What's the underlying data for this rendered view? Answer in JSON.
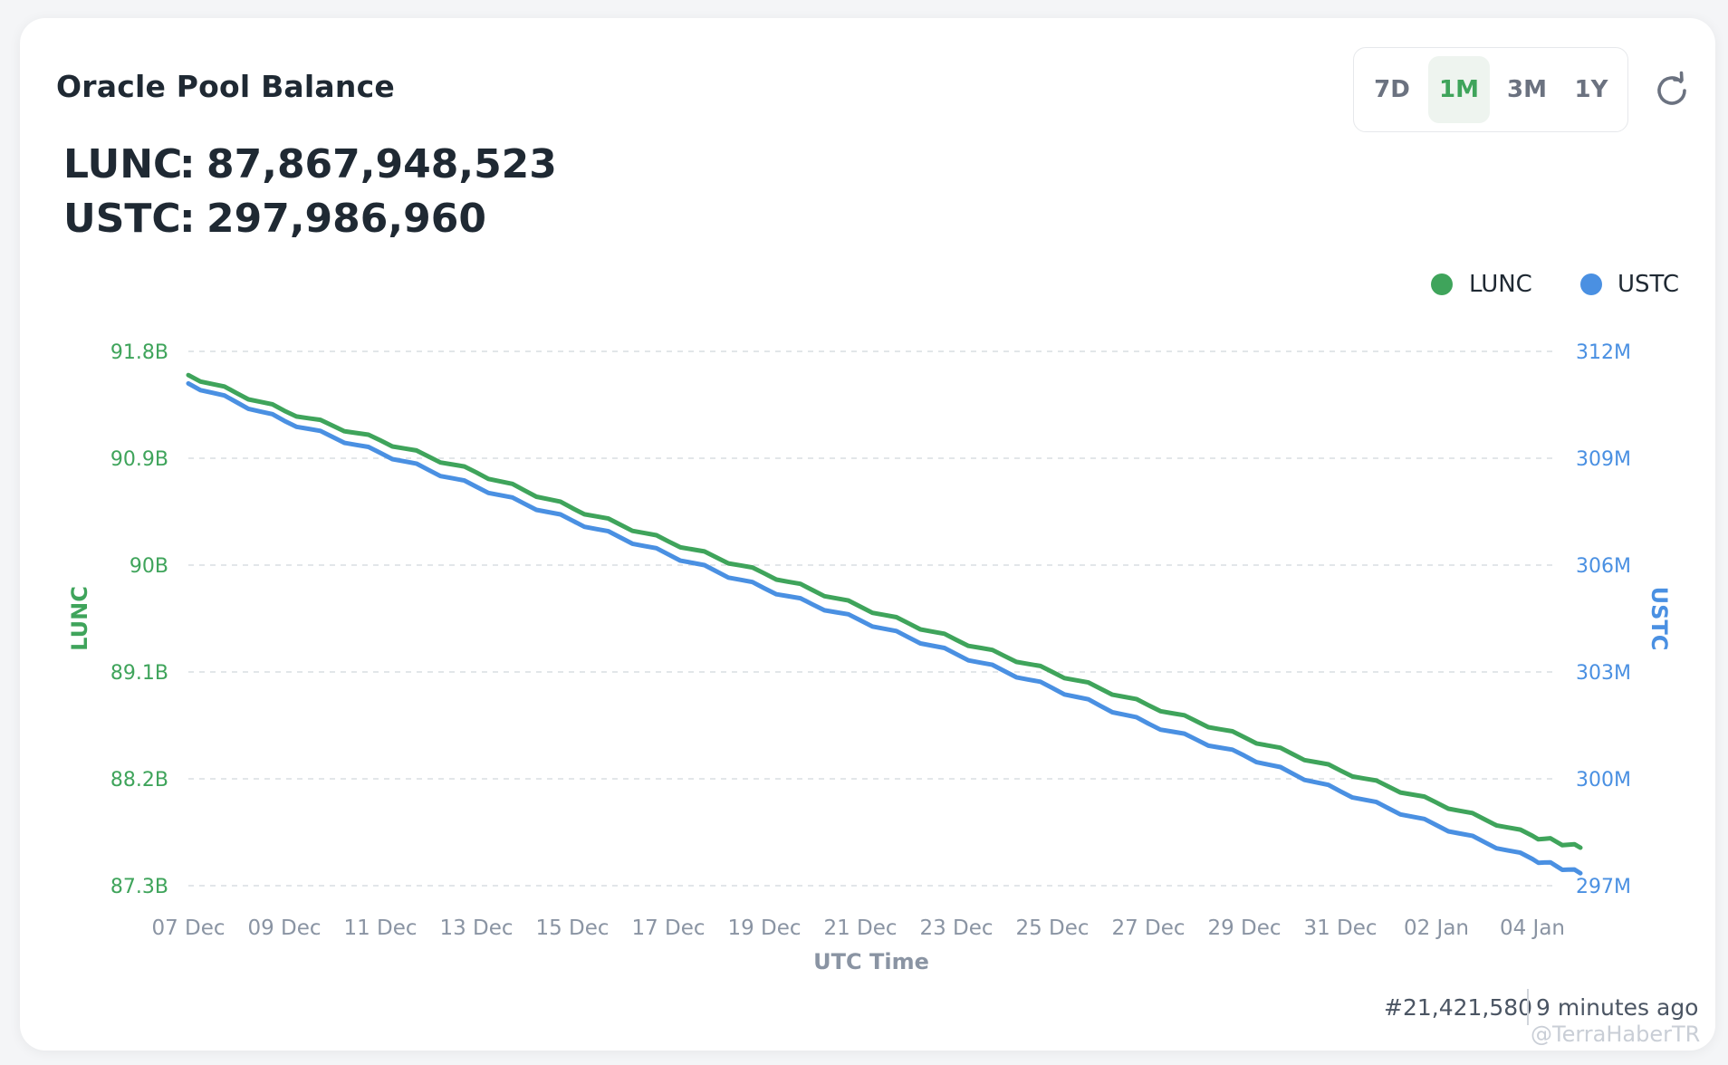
{
  "title": "Oracle Pool Balance",
  "balances": [
    {
      "label": "LUNC",
      "value": "87,867,948,523"
    },
    {
      "label": "USTC",
      "value": "297,986,960"
    }
  ],
  "separator": ":",
  "time_ranges": [
    {
      "label": "7D",
      "active": false
    },
    {
      "label": "1M",
      "active": true
    },
    {
      "label": "3M",
      "active": false
    },
    {
      "label": "1Y",
      "active": false
    }
  ],
  "refresh_icon": "refresh-icon",
  "colors": {
    "lunc": "#3fa45b",
    "ustc": "#4a90e2",
    "grid": "#d9dde2",
    "axis_text": "#8a94a3"
  },
  "footer": {
    "block": "#21,421,580",
    "updated": "9 minutes ago"
  },
  "watermark": "@TerraHaberTR",
  "chart_data": {
    "type": "line",
    "xlabel": "UTC Time",
    "x_ticks": [
      "07 Dec",
      "09 Dec",
      "11 Dec",
      "13 Dec",
      "15 Dec",
      "17 Dec",
      "19 Dec",
      "21 Dec",
      "23 Dec",
      "25 Dec",
      "27 Dec",
      "29 Dec",
      "31 Dec",
      "02 Jan",
      "04 Jan"
    ],
    "legend": {
      "position": "top-right",
      "items": [
        "LUNC",
        "USTC"
      ]
    },
    "y_left": {
      "label": "LUNC",
      "ticks": [
        "91.8B",
        "90.9B",
        "90B",
        "89.1B",
        "88.2B",
        "87.3B"
      ],
      "range": [
        87.3,
        91.8
      ],
      "unit": "B"
    },
    "y_right": {
      "label": "USTC",
      "ticks": [
        "312M",
        "309M",
        "306M",
        "303M",
        "300M",
        "297M"
      ],
      "range": [
        297,
        312
      ],
      "unit": "M"
    },
    "grid": true,
    "series": [
      {
        "name": "LUNC",
        "axis": "left",
        "x": [
          "07 Dec",
          "09 Dec",
          "11 Dec",
          "13 Dec",
          "15 Dec",
          "17 Dec",
          "19 Dec",
          "21 Dec",
          "23 Dec",
          "25 Dec",
          "27 Dec",
          "29 Dec",
          "31 Dec",
          "02 Jan",
          "04 Jan",
          "05 Jan"
        ],
        "values": [
          91.6,
          91.3,
          91.05,
          90.78,
          90.48,
          90.2,
          89.93,
          89.65,
          89.37,
          89.1,
          88.82,
          88.55,
          88.27,
          88.0,
          87.72,
          87.62
        ]
      },
      {
        "name": "USTC",
        "axis": "right",
        "x": [
          "07 Dec",
          "09 Dec",
          "11 Dec",
          "13 Dec",
          "15 Dec",
          "17 Dec",
          "19 Dec",
          "21 Dec",
          "23 Dec",
          "25 Dec",
          "27 Dec",
          "29 Dec",
          "31 Dec",
          "02 Jan",
          "04 Jan",
          "05 Jan"
        ],
        "values": [
          311.1,
          310.05,
          309.15,
          308.2,
          307.25,
          306.3,
          305.35,
          304.45,
          303.5,
          302.55,
          301.55,
          300.65,
          299.65,
          298.7,
          297.75,
          297.35
        ]
      }
    ]
  }
}
